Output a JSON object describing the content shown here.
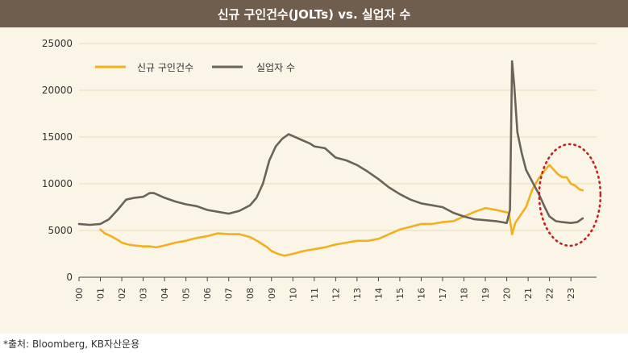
{
  "source_note": "*출처: Bloomberg, KB자산운용",
  "colors": {
    "title_bg": "#6f5d4e",
    "panel_bg": "#fbf5e7",
    "gridline": "#ead9b8",
    "job_openings": "#f2b01e",
    "unemployed": "#6b625a",
    "highlight_circle": "#c81e1e"
  },
  "chart_data": {
    "type": "line",
    "title": "신규 구인건수(JOLTs) vs. 실업자 수",
    "xlabel": "",
    "ylabel": "",
    "ylim": [
      0,
      25000
    ],
    "y_ticks": [
      0,
      5000,
      10000,
      15000,
      20000,
      25000
    ],
    "y_tick_labels": [
      "0",
      "5000",
      "10000",
      "15000",
      "20000",
      "25000"
    ],
    "x_range": [
      2000,
      2024.2
    ],
    "x_ticks": [
      2000,
      2001,
      2002,
      2003,
      2004,
      2005,
      2006,
      2007,
      2008,
      2009,
      2010,
      2011,
      2012,
      2013,
      2014,
      2015,
      2016,
      2017,
      2018,
      2019,
      2020,
      2021,
      2022,
      2023
    ],
    "x_tick_labels": [
      "'00",
      "'01",
      "'02",
      "'03",
      "'04",
      "'05",
      "'06",
      "'07",
      "'08",
      "'09",
      "'10",
      "'11",
      "'12",
      "'13",
      "'14",
      "'15",
      "'16",
      "'17",
      "'18",
      "'19",
      "'20",
      "'21",
      "'22",
      "'23"
    ],
    "grid": true,
    "legend_position": "top-left",
    "annotation": "dotted red circle around 2022-2023 crossover",
    "series": [
      {
        "name": "신규 구인건수",
        "x": [
          2001.0,
          2001.2,
          2001.5,
          2001.8,
          2002.0,
          2002.3,
          2002.6,
          2003.0,
          2003.3,
          2003.6,
          2004.0,
          2004.5,
          2005.0,
          2005.5,
          2006.0,
          2006.5,
          2007.0,
          2007.5,
          2008.0,
          2008.4,
          2008.8,
          2009.0,
          2009.3,
          2009.6,
          2010.0,
          2010.5,
          2011.0,
          2011.5,
          2012.0,
          2012.5,
          2013.0,
          2013.5,
          2014.0,
          2014.5,
          2015.0,
          2015.5,
          2016.0,
          2016.5,
          2017.0,
          2017.5,
          2018.0,
          2018.5,
          2019.0,
          2019.5,
          2019.9,
          2020.1,
          2020.25,
          2020.4,
          2020.6,
          2020.9,
          2021.2,
          2021.5,
          2021.8,
          2022.0,
          2022.2,
          2022.4,
          2022.6,
          2022.8,
          2023.0,
          2023.2,
          2023.4,
          2023.55
        ],
        "values": [
          5100,
          4700,
          4400,
          4000,
          3700,
          3500,
          3400,
          3300,
          3300,
          3200,
          3400,
          3700,
          3900,
          4200,
          4400,
          4700,
          4600,
          4600,
          4300,
          3800,
          3200,
          2800,
          2500,
          2300,
          2500,
          2800,
          3000,
          3200,
          3500,
          3700,
          3900,
          3900,
          4100,
          4600,
          5100,
          5400,
          5700,
          5700,
          5900,
          6000,
          6500,
          7000,
          7400,
          7200,
          7000,
          6900,
          4600,
          5800,
          6500,
          7500,
          9400,
          10600,
          11500,
          12000,
          11500,
          11000,
          10700,
          10700,
          10000,
          9800,
          9400,
          9300
        ]
      },
      {
        "name": "실업자 수",
        "x": [
          2000.0,
          2000.5,
          2001.0,
          2001.4,
          2001.8,
          2002.2,
          2002.6,
          2003.0,
          2003.3,
          2003.5,
          2004.0,
          2004.5,
          2005.0,
          2005.5,
          2006.0,
          2006.5,
          2007.0,
          2007.5,
          2008.0,
          2008.3,
          2008.6,
          2008.9,
          2009.2,
          2009.5,
          2009.8,
          2010.0,
          2010.4,
          2010.8,
          2011.0,
          2011.5,
          2012.0,
          2012.5,
          2013.0,
          2013.5,
          2014.0,
          2014.5,
          2015.0,
          2015.5,
          2016.0,
          2016.5,
          2017.0,
          2017.5,
          2018.0,
          2018.5,
          2019.0,
          2019.5,
          2020.0,
          2020.15,
          2020.25,
          2020.35,
          2020.5,
          2020.7,
          2020.9,
          2021.2,
          2021.5,
          2021.8,
          2022.0,
          2022.3,
          2022.6,
          2023.0,
          2023.3,
          2023.55
        ],
        "values": [
          5700,
          5600,
          5700,
          6200,
          7200,
          8300,
          8500,
          8600,
          9000,
          9000,
          8500,
          8100,
          7800,
          7600,
          7200,
          7000,
          6800,
          7100,
          7700,
          8500,
          10000,
          12500,
          14000,
          14800,
          15300,
          15100,
          14700,
          14300,
          14000,
          13800,
          12800,
          12500,
          12000,
          11300,
          10500,
          9600,
          8900,
          8300,
          7900,
          7700,
          7500,
          6900,
          6500,
          6200,
          6100,
          6000,
          5800,
          7200,
          23100,
          20500,
          15500,
          13300,
          11500,
          10200,
          8900,
          7400,
          6500,
          6000,
          5900,
          5800,
          5900,
          6300
        ]
      }
    ]
  }
}
